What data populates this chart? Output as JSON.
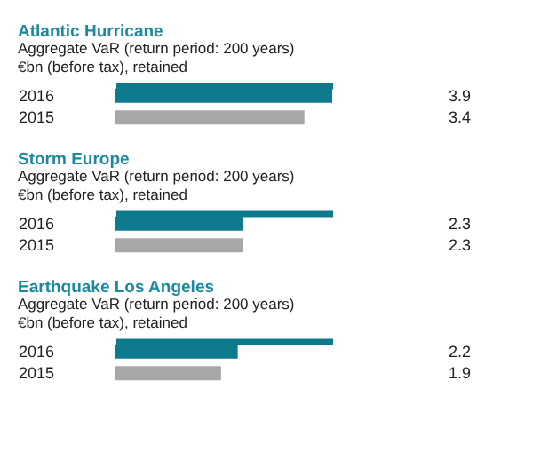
{
  "chart_data": [
    {
      "type": "bar",
      "orientation": "horizontal",
      "title": "Atlantic Hurricane",
      "subtitle": "Aggregate VaR (return period: 200 years)",
      "annotations": [
        "€bn (before tax), retained"
      ],
      "categories": [
        "2016",
        "2015"
      ],
      "values": [
        3.9,
        3.4
      ],
      "colors": [
        "#0f7a8c",
        "#a7a8aa"
      ],
      "data_labels": true,
      "grid": false,
      "tick_labels": "y"
    },
    {
      "type": "bar",
      "orientation": "horizontal",
      "title": "Storm Europe",
      "subtitle": "Aggregate VaR (return period: 200 years)",
      "annotations": [
        "€bn (before tax), retained"
      ],
      "categories": [
        "2016",
        "2015"
      ],
      "values": [
        2.3,
        2.3
      ],
      "colors": [
        "#0f7a8c",
        "#a7a8aa"
      ],
      "data_labels": true,
      "grid": false,
      "tick_labels": "y"
    },
    {
      "type": "bar",
      "orientation": "horizontal",
      "title": "Earthquake Los Angeles",
      "subtitle": "Aggregate VaR (return period: 200 years)",
      "annotations": [
        "€bn (before tax), retained"
      ],
      "categories": [
        "2016",
        "2015"
      ],
      "values": [
        2.2,
        1.9
      ],
      "colors": [
        "#0f7a8c",
        "#a7a8aa"
      ],
      "data_labels": true,
      "grid": false,
      "tick_labels": "y"
    }
  ]
}
